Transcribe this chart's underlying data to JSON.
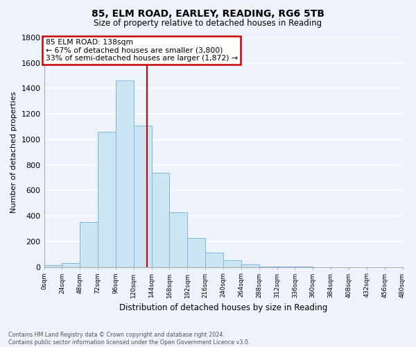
{
  "title1": "85, ELM ROAD, EARLEY, READING, RG6 5TB",
  "title2": "Size of property relative to detached houses in Reading",
  "xlabel": "Distribution of detached houses by size in Reading",
  "ylabel": "Number of detached properties",
  "bin_edges": [
    0,
    24,
    48,
    72,
    96,
    120,
    144,
    168,
    192,
    216,
    240,
    264,
    288,
    312,
    336,
    360,
    384,
    408,
    432,
    456,
    480
  ],
  "bar_heights": [
    15,
    30,
    350,
    1060,
    1460,
    1110,
    740,
    430,
    225,
    110,
    55,
    20,
    5,
    2,
    1,
    0,
    0,
    0,
    0,
    0
  ],
  "bar_color": "#cce5f5",
  "bar_edge_color": "#7ab8d9",
  "property_line_x": 138,
  "property_line_color": "#cc0000",
  "annotation_title": "85 ELM ROAD: 138sqm",
  "annotation_line1": "← 67% of detached houses are smaller (3,800)",
  "annotation_line2": "33% of semi-detached houses are larger (1,872) →",
  "annotation_box_color": "white",
  "annotation_box_edge_color": "#cc0000",
  "ylim": [
    0,
    1800
  ],
  "yticks": [
    0,
    200,
    400,
    600,
    800,
    1000,
    1200,
    1400,
    1600,
    1800
  ],
  "xtick_labels": [
    "0sqm",
    "24sqm",
    "48sqm",
    "72sqm",
    "96sqm",
    "120sqm",
    "144sqm",
    "168sqm",
    "192sqm",
    "216sqm",
    "240sqm",
    "264sqm",
    "288sqm",
    "312sqm",
    "336sqm",
    "360sqm",
    "384sqm",
    "408sqm",
    "432sqm",
    "456sqm",
    "480sqm"
  ],
  "footnote1": "Contains HM Land Registry data © Crown copyright and database right 2024.",
  "footnote2": "Contains public sector information licensed under the Open Government Licence v3.0.",
  "background_color": "#eef2fb",
  "grid_color": "white"
}
